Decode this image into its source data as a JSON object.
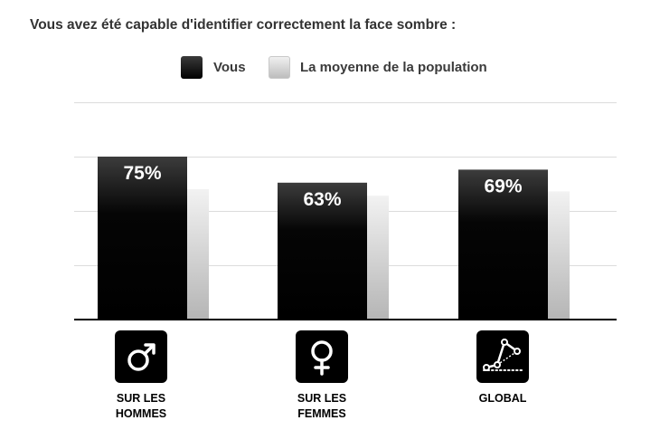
{
  "title": "Vous avez été capable d'identifier correctement la face sombre :",
  "legend": [
    {
      "label": "Vous",
      "color": "#000000"
    },
    {
      "label": "La moyenne de la population",
      "color": "#d4d4d4"
    }
  ],
  "chart_data": {
    "type": "bar",
    "categories": [
      "SUR LES HOMMES",
      "SUR LES FEMMES",
      "GLOBAL"
    ],
    "series": [
      {
        "name": "Vous",
        "values": [
          75,
          63,
          69
        ],
        "labels": [
          "75%",
          "63%",
          "69%"
        ]
      },
      {
        "name": "La moyenne de la population",
        "values": [
          60,
          57,
          59
        ]
      }
    ],
    "ylim": [
      0,
      100
    ],
    "grid": true,
    "legend_position": "top"
  },
  "icons": [
    "male-symbol-icon",
    "female-symbol-icon",
    "scatter-plot-icon"
  ]
}
